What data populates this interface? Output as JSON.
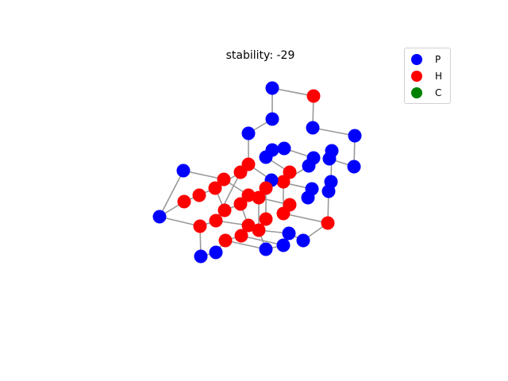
{
  "title": "stability: -29",
  "legend": [
    {
      "label": "P",
      "color": "#0000ff"
    },
    {
      "label": "H",
      "color": "#ff0000"
    },
    {
      "label": "C",
      "color": "#008000"
    }
  ],
  "colors": {
    "bond": "#999999"
  },
  "beads": [
    {
      "id": 0,
      "type": "P",
      "pos": [
        343,
        111
      ]
    },
    {
      "id": 1,
      "type": "H",
      "pos": [
        395,
        121
      ]
    },
    {
      "id": 2,
      "type": "P",
      "pos": [
        343,
        150
      ]
    },
    {
      "id": 3,
      "type": "P",
      "pos": [
        394,
        161
      ]
    },
    {
      "id": 4,
      "type": "P",
      "pos": [
        447,
        171
      ]
    },
    {
      "id": 5,
      "type": "P",
      "pos": [
        313,
        168
      ]
    },
    {
      "id": 6,
      "type": "P",
      "pos": [
        343,
        189
      ]
    },
    {
      "id": 7,
      "type": "P",
      "pos": [
        358,
        187
      ]
    },
    {
      "id": 8,
      "type": "P",
      "pos": [
        335,
        198
      ]
    },
    {
      "id": 9,
      "type": "P",
      "pos": [
        418,
        190
      ]
    },
    {
      "id": 10,
      "type": "P",
      "pos": [
        395,
        199
      ]
    },
    {
      "id": 11,
      "type": "P",
      "pos": [
        415,
        200
      ]
    },
    {
      "id": 12,
      "type": "P",
      "pos": [
        446,
        210
      ]
    },
    {
      "id": 13,
      "type": "P",
      "pos": [
        389,
        209
      ]
    },
    {
      "id": 14,
      "type": "H",
      "pos": [
        313,
        207
      ]
    },
    {
      "id": 15,
      "type": "H",
      "pos": [
        303,
        217
      ]
    },
    {
      "id": 16,
      "type": "H",
      "pos": [
        365,
        217
      ]
    },
    {
      "id": 17,
      "type": "P",
      "pos": [
        231,
        215
      ]
    },
    {
      "id": 18,
      "type": "H",
      "pos": [
        282,
        226
      ]
    },
    {
      "id": 19,
      "type": "H",
      "pos": [
        357,
        229
      ]
    },
    {
      "id": 20,
      "type": "P",
      "pos": [
        342,
        227
      ]
    },
    {
      "id": 21,
      "type": "P",
      "pos": [
        417,
        229
      ]
    },
    {
      "id": 22,
      "type": "H",
      "pos": [
        271,
        237
      ]
    },
    {
      "id": 23,
      "type": "H",
      "pos": [
        335,
        237
      ]
    },
    {
      "id": 24,
      "type": "P",
      "pos": [
        393,
        238
      ]
    },
    {
      "id": 25,
      "type": "P",
      "pos": [
        414,
        241
      ]
    },
    {
      "id": 26,
      "type": "H",
      "pos": [
        251,
        246
      ]
    },
    {
      "id": 27,
      "type": "H",
      "pos": [
        313,
        246
      ]
    },
    {
      "id": 28,
      "type": "H",
      "pos": [
        326,
        249
      ]
    },
    {
      "id": 29,
      "type": "P",
      "pos": [
        388,
        249
      ]
    },
    {
      "id": 30,
      "type": "H",
      "pos": [
        232,
        254
      ]
    },
    {
      "id": 31,
      "type": "H",
      "pos": [
        303,
        257
      ]
    },
    {
      "id": 32,
      "type": "H",
      "pos": [
        365,
        258
      ]
    },
    {
      "id": 33,
      "type": "H",
      "pos": [
        283,
        265
      ]
    },
    {
      "id": 34,
      "type": "H",
      "pos": [
        357,
        269
      ]
    },
    {
      "id": 35,
      "type": "P",
      "pos": [
        201,
        273
      ]
    },
    {
      "id": 36,
      "type": "H",
      "pos": [
        272,
        278
      ]
    },
    {
      "id": 37,
      "type": "H",
      "pos": [
        335,
        276
      ]
    },
    {
      "id": 38,
      "type": "H",
      "pos": [
        413,
        281
      ]
    },
    {
      "id": 39,
      "type": "H",
      "pos": [
        252,
        285
      ]
    },
    {
      "id": 40,
      "type": "H",
      "pos": [
        313,
        284
      ]
    },
    {
      "id": 41,
      "type": "H",
      "pos": [
        326,
        290
      ]
    },
    {
      "id": 42,
      "type": "H",
      "pos": [
        304,
        297
      ]
    },
    {
      "id": 43,
      "type": "P",
      "pos": [
        364,
        294
      ]
    },
    {
      "id": 44,
      "type": "H",
      "pos": [
        284,
        303
      ]
    },
    {
      "id": 45,
      "type": "P",
      "pos": [
        382,
        303
      ]
    },
    {
      "id": 46,
      "type": "P",
      "pos": [
        357,
        309
      ]
    },
    {
      "id": 47,
      "type": "P",
      "pos": [
        335,
        314
      ]
    },
    {
      "id": 48,
      "type": "P",
      "pos": [
        272,
        318
      ]
    },
    {
      "id": 49,
      "type": "P",
      "pos": [
        253,
        323
      ]
    }
  ],
  "bonds": [
    [
      0,
      1
    ],
    [
      0,
      2
    ],
    [
      1,
      3
    ],
    [
      3,
      4
    ],
    [
      4,
      12
    ],
    [
      12,
      11
    ],
    [
      2,
      5
    ],
    [
      5,
      14
    ],
    [
      6,
      7
    ],
    [
      7,
      10
    ],
    [
      10,
      13
    ],
    [
      9,
      11
    ],
    [
      8,
      6
    ],
    [
      14,
      15
    ],
    [
      15,
      22
    ],
    [
      22,
      26
    ],
    [
      26,
      30
    ],
    [
      17,
      18
    ],
    [
      18,
      22
    ],
    [
      17,
      35
    ],
    [
      35,
      39
    ],
    [
      39,
      49
    ],
    [
      30,
      35
    ],
    [
      14,
      20
    ],
    [
      20,
      24
    ],
    [
      24,
      29
    ],
    [
      16,
      19
    ],
    [
      19,
      13
    ],
    [
      16,
      23
    ],
    [
      23,
      20
    ],
    [
      18,
      27
    ],
    [
      27,
      31
    ],
    [
      31,
      33
    ],
    [
      33,
      36
    ],
    [
      36,
      40
    ],
    [
      40,
      42
    ],
    [
      42,
      44
    ],
    [
      44,
      48
    ],
    [
      48,
      49
    ],
    [
      27,
      28
    ],
    [
      28,
      32
    ],
    [
      32,
      34
    ],
    [
      34,
      38
    ],
    [
      38,
      45
    ],
    [
      45,
      43
    ],
    [
      43,
      46
    ],
    [
      46,
      47
    ],
    [
      47,
      41
    ],
    [
      41,
      37
    ],
    [
      37,
      23
    ],
    [
      31,
      40
    ],
    [
      28,
      41
    ],
    [
      36,
      39
    ],
    [
      22,
      33
    ],
    [
      44,
      47
    ],
    [
      21,
      25
    ],
    [
      25,
      38
    ],
    [
      15,
      36
    ],
    [
      19,
      34
    ],
    [
      41,
      43
    ],
    [
      42,
      46
    ],
    [
      9,
      21
    ],
    [
      8,
      16
    ]
  ]
}
